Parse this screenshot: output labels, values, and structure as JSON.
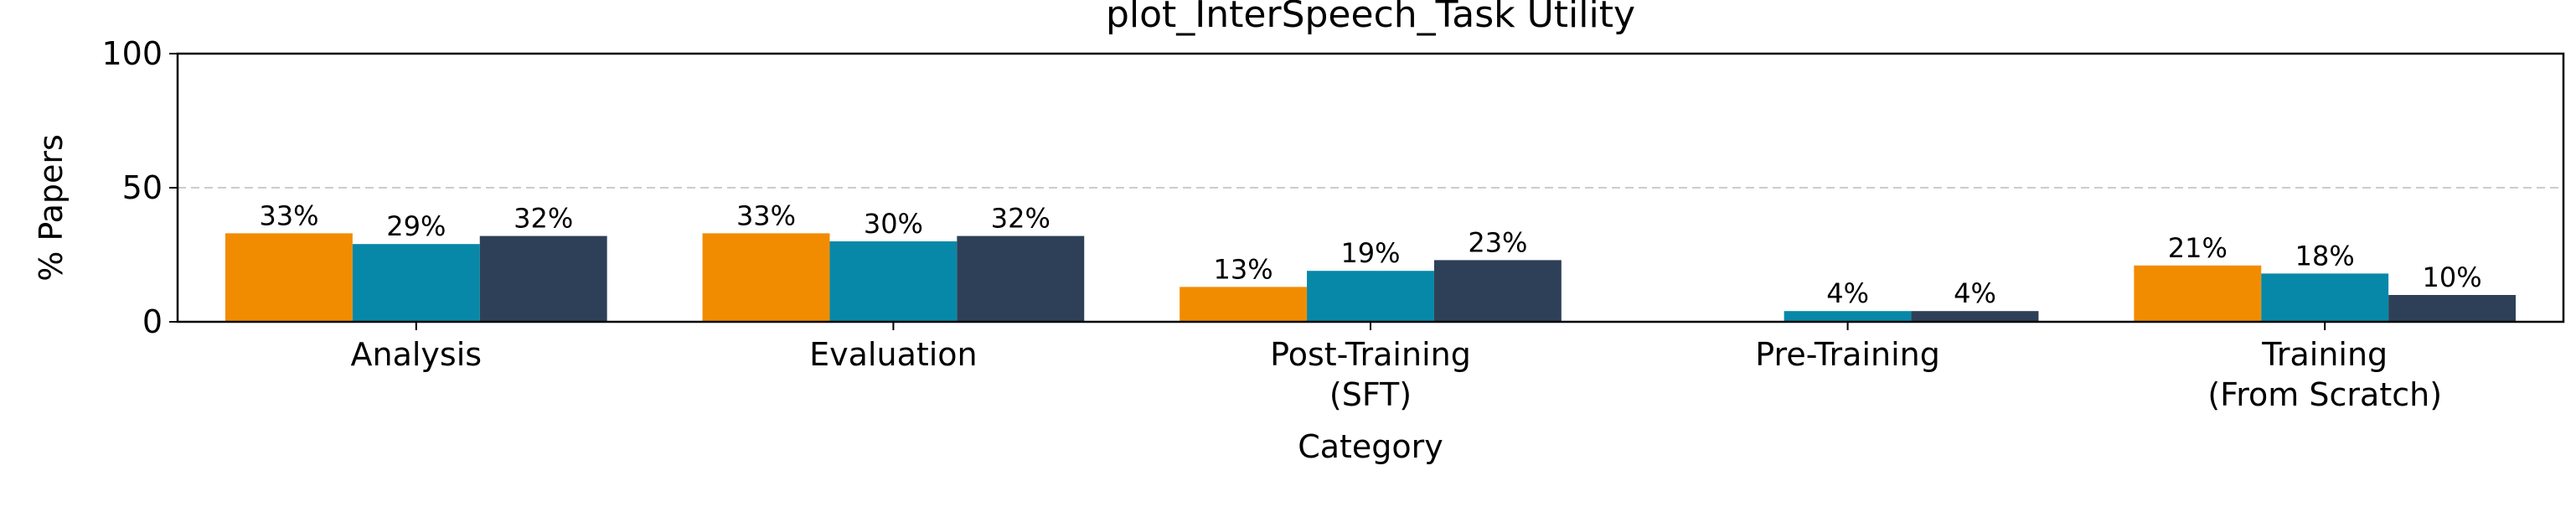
{
  "chart_data": {
    "type": "bar",
    "title": "plot_InterSpeech_Task Utility",
    "xlabel": "Category",
    "ylabel": "% Papers",
    "ylim": [
      0,
      100
    ],
    "yticks": [
      0,
      50,
      100
    ],
    "grid": {
      "y_major": true,
      "style": "dashed",
      "values": [
        50
      ]
    },
    "categories": [
      [
        "Analysis"
      ],
      [
        "Evaluation"
      ],
      [
        "Post-Training",
        "(SFT)"
      ],
      [
        "Pre-Training"
      ],
      [
        "Training",
        "(From Scratch)"
      ]
    ],
    "series": [
      {
        "color": "#F18C00",
        "values": [
          33,
          33,
          13,
          0,
          21
        ],
        "labels": [
          "33%",
          "33%",
          "13%",
          "",
          "21%"
        ]
      },
      {
        "color": "#0788A8",
        "values": [
          29,
          30,
          19,
          4,
          18
        ],
        "labels": [
          "29%",
          "30%",
          "19%",
          "4%",
          "18%"
        ]
      },
      {
        "color": "#2E4057",
        "values": [
          32,
          32,
          23,
          4,
          10
        ],
        "labels": [
          "32%",
          "32%",
          "23%",
          "4%",
          "10%"
        ]
      }
    ]
  }
}
